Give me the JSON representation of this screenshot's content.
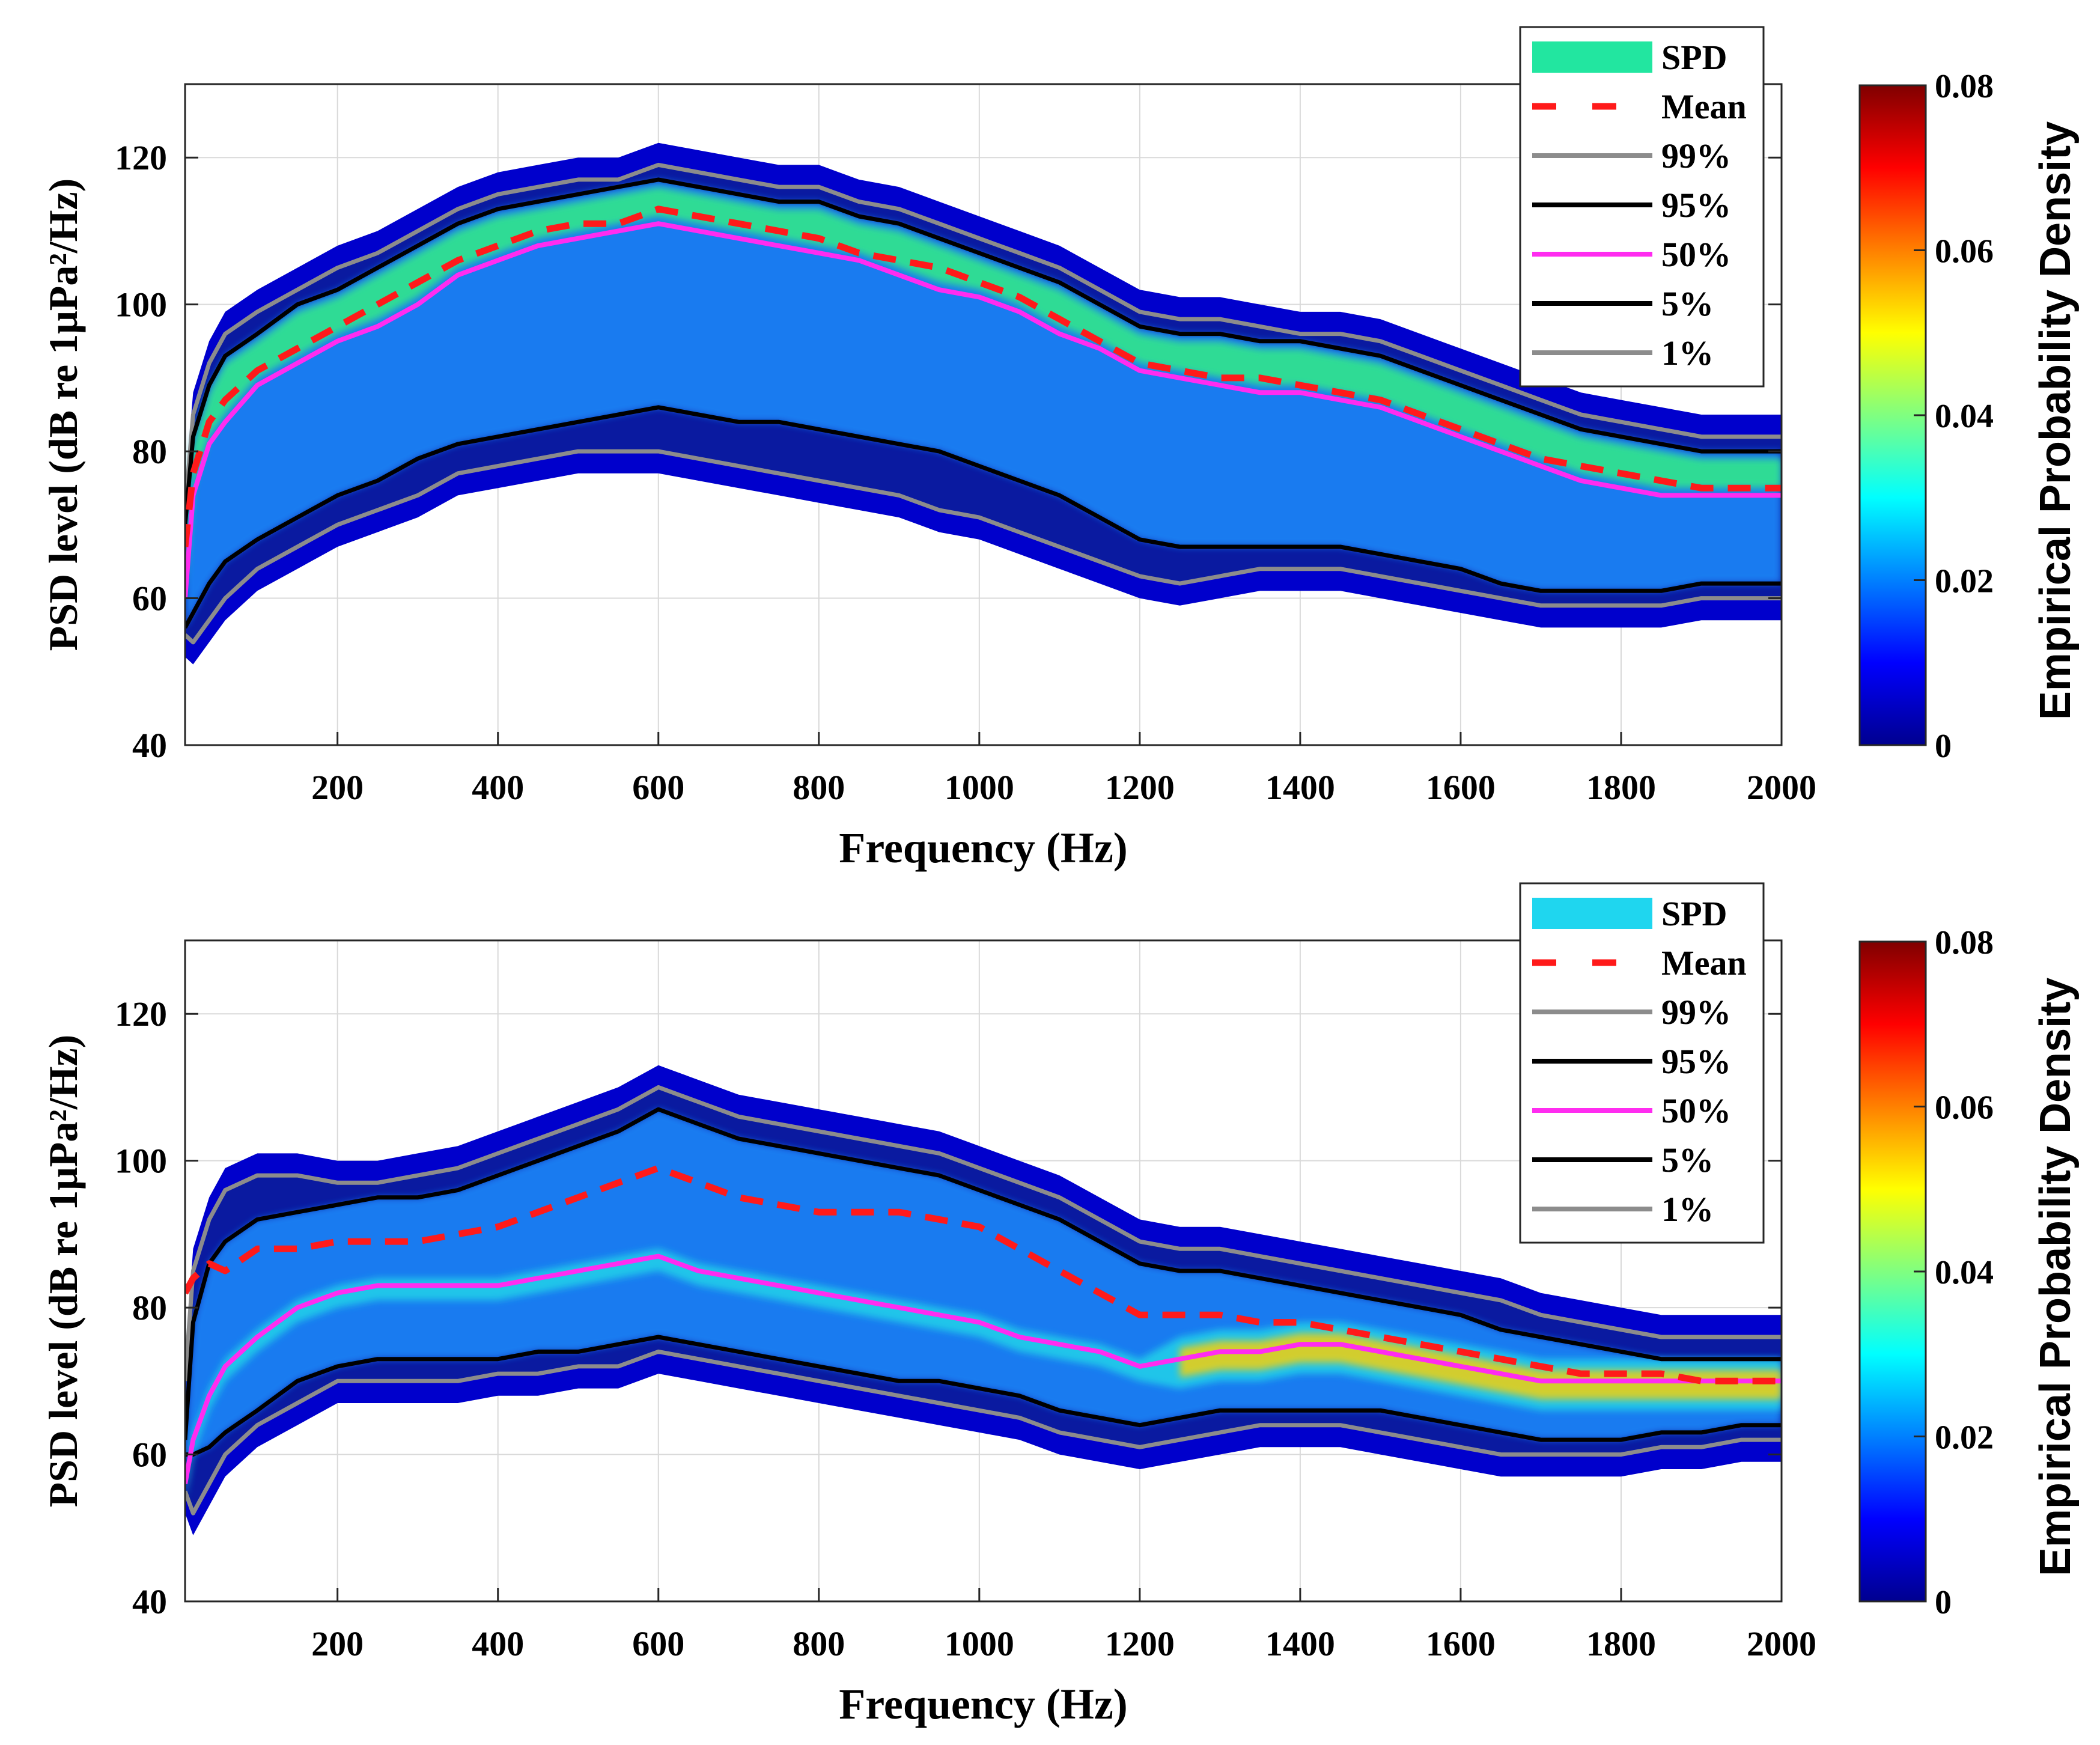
{
  "colors": {
    "spd_top": "#22e6a0",
    "spd_bottom": "#1fd6ef",
    "mean": "#ff1a1a",
    "p99": "#8c8c8c",
    "p95": "#000000",
    "p50": "#ff2cf0",
    "p5": "#000000",
    "p1": "#8c8c8c",
    "grid": "#d9d9d9",
    "density_low": "#0a1aa0",
    "density_mid": "#1a8dff",
    "density_halo": "#0000cc"
  },
  "colormap": [
    "#00008f",
    "#0000ff",
    "#0080ff",
    "#00ffff",
    "#80ff80",
    "#ffff00",
    "#ff8000",
    "#ff0000",
    "#800000"
  ],
  "chart_data": [
    {
      "type": "line",
      "name": "top-panel",
      "xlabel": "Frequency (Hz)",
      "ylabel": "PSD level (dB re 1μPa²/Hz)",
      "xlim": [
        10,
        2000
      ],
      "ylim": [
        40,
        130
      ],
      "xticks": [
        200,
        400,
        600,
        800,
        1000,
        1200,
        1400,
        1600,
        1800,
        2000
      ],
      "yticks": [
        40,
        60,
        80,
        100,
        120
      ],
      "grid": true,
      "legend": {
        "position": "top-right",
        "labels": [
          "SPD",
          "Mean",
          "99%",
          "95%",
          "50%",
          "5%",
          "1%"
        ]
      },
      "colorbar": {
        "label": "Empirical Probability Density",
        "range": [
          0,
          0.08
        ],
        "ticks": [
          "0",
          "0.02",
          "0.04",
          "0.06",
          "0.08"
        ]
      },
      "x": [
        10,
        20,
        40,
        60,
        100,
        150,
        200,
        250,
        300,
        350,
        400,
        450,
        500,
        550,
        600,
        650,
        700,
        750,
        800,
        850,
        900,
        950,
        1000,
        1050,
        1100,
        1150,
        1200,
        1250,
        1300,
        1350,
        1400,
        1450,
        1500,
        1550,
        1600,
        1650,
        1700,
        1750,
        1800,
        1850,
        1900,
        1950,
        2000
      ],
      "series": [
        {
          "name": "99%",
          "values": [
            72,
            85,
            92,
            96,
            99,
            102,
            105,
            107,
            110,
            113,
            115,
            116,
            117,
            117,
            119,
            118,
            117,
            116,
            116,
            114,
            113,
            111,
            109,
            107,
            105,
            102,
            99,
            98,
            98,
            97,
            96,
            96,
            95,
            93,
            91,
            89,
            87,
            85,
            84,
            83,
            82,
            82,
            82
          ]
        },
        {
          "name": "95%",
          "values": [
            70,
            82,
            89,
            93,
            96,
            100,
            102,
            105,
            108,
            111,
            113,
            114,
            115,
            116,
            117,
            116,
            115,
            114,
            114,
            112,
            111,
            109,
            107,
            105,
            103,
            100,
            97,
            96,
            96,
            95,
            95,
            94,
            93,
            91,
            89,
            87,
            85,
            83,
            82,
            81,
            80,
            80,
            80
          ]
        },
        {
          "name": "Mean",
          "values": [
            67,
            77,
            84,
            87,
            91,
            94,
            97,
            100,
            103,
            106,
            108,
            110,
            111,
            111,
            113,
            112,
            111,
            110,
            109,
            107,
            106,
            105,
            103,
            101,
            98,
            95,
            92,
            91,
            90,
            90,
            89,
            88,
            87,
            85,
            83,
            81,
            79,
            78,
            77,
            76,
            75,
            75,
            75
          ]
        },
        {
          "name": "50%",
          "values": [
            60,
            74,
            81,
            84,
            89,
            92,
            95,
            97,
            100,
            104,
            106,
            108,
            109,
            110,
            111,
            110,
            109,
            108,
            107,
            106,
            104,
            102,
            101,
            99,
            96,
            94,
            91,
            90,
            89,
            88,
            88,
            87,
            86,
            84,
            82,
            80,
            78,
            76,
            75,
            74,
            74,
            74,
            74
          ]
        },
        {
          "name": "5%",
          "values": [
            56,
            58,
            62,
            65,
            68,
            71,
            74,
            76,
            79,
            81,
            82,
            83,
            84,
            85,
            86,
            85,
            84,
            84,
            83,
            82,
            81,
            80,
            78,
            76,
            74,
            71,
            68,
            67,
            67,
            67,
            67,
            67,
            66,
            65,
            64,
            62,
            61,
            61,
            61,
            61,
            62,
            62,
            62
          ]
        },
        {
          "name": "1%",
          "values": [
            55,
            54,
            57,
            60,
            64,
            67,
            70,
            72,
            74,
            77,
            78,
            79,
            80,
            80,
            80,
            79,
            78,
            77,
            76,
            75,
            74,
            72,
            71,
            69,
            67,
            65,
            63,
            62,
            63,
            64,
            64,
            64,
            63,
            62,
            61,
            60,
            59,
            59,
            59,
            59,
            60,
            60,
            60
          ]
        }
      ]
    },
    {
      "type": "line",
      "name": "bottom-panel",
      "xlabel": "Frequency (Hz)",
      "ylabel": "PSD level (dB re 1μPa²/Hz)",
      "xlim": [
        10,
        2000
      ],
      "ylim": [
        40,
        130
      ],
      "xticks": [
        200,
        400,
        600,
        800,
        1000,
        1200,
        1400,
        1600,
        1800,
        2000
      ],
      "yticks": [
        40,
        60,
        80,
        100,
        120
      ],
      "grid": true,
      "legend": {
        "position": "top-right",
        "labels": [
          "SPD",
          "Mean",
          "99%",
          "95%",
          "50%",
          "5%",
          "1%"
        ]
      },
      "colorbar": {
        "label": "Empirical Probability Density",
        "range": [
          0,
          0.08
        ],
        "ticks": [
          "0",
          "0.02",
          "0.04",
          "0.06",
          "0.08"
        ]
      },
      "x": [
        10,
        20,
        40,
        60,
        100,
        150,
        200,
        250,
        300,
        350,
        400,
        450,
        500,
        550,
        600,
        650,
        700,
        750,
        800,
        850,
        900,
        950,
        1000,
        1050,
        1100,
        1150,
        1200,
        1250,
        1300,
        1350,
        1400,
        1450,
        1500,
        1550,
        1600,
        1650,
        1700,
        1750,
        1800,
        1850,
        1900,
        1950,
        2000
      ],
      "series": [
        {
          "name": "99%",
          "values": [
            70,
            85,
            92,
            96,
            98,
            98,
            97,
            97,
            98,
            99,
            101,
            103,
            105,
            107,
            110,
            108,
            106,
            105,
            104,
            103,
            102,
            101,
            99,
            97,
            95,
            92,
            89,
            88,
            88,
            87,
            86,
            85,
            84,
            83,
            82,
            81,
            79,
            78,
            77,
            76,
            76,
            76,
            76
          ]
        },
        {
          "name": "95%",
          "values": [
            62,
            78,
            86,
            89,
            92,
            93,
            94,
            95,
            95,
            96,
            98,
            100,
            102,
            104,
            107,
            105,
            103,
            102,
            101,
            100,
            99,
            98,
            96,
            94,
            92,
            89,
            86,
            85,
            85,
            84,
            83,
            82,
            81,
            80,
            79,
            77,
            76,
            75,
            74,
            73,
            73,
            73,
            73
          ]
        },
        {
          "name": "Mean",
          "values": [
            82,
            84,
            86,
            85,
            88,
            88,
            89,
            89,
            89,
            90,
            91,
            93,
            95,
            97,
            99,
            97,
            95,
            94,
            93,
            93,
            93,
            92,
            91,
            88,
            85,
            82,
            79,
            79,
            79,
            78,
            78,
            77,
            76,
            75,
            74,
            73,
            72,
            71,
            71,
            71,
            70,
            70,
            70
          ]
        },
        {
          "name": "50%",
          "values": [
            56,
            62,
            68,
            72,
            76,
            80,
            82,
            83,
            83,
            83,
            83,
            84,
            85,
            86,
            87,
            85,
            84,
            83,
            82,
            81,
            80,
            79,
            78,
            76,
            75,
            74,
            72,
            73,
            74,
            74,
            75,
            75,
            74,
            73,
            72,
            71,
            70,
            70,
            70,
            70,
            70,
            70,
            70
          ]
        },
        {
          "name": "5%",
          "values": [
            60,
            60,
            61,
            63,
            66,
            70,
            72,
            73,
            73,
            73,
            73,
            74,
            74,
            75,
            76,
            75,
            74,
            73,
            72,
            71,
            70,
            70,
            69,
            68,
            66,
            65,
            64,
            65,
            66,
            66,
            66,
            66,
            66,
            65,
            64,
            63,
            62,
            62,
            62,
            63,
            63,
            64,
            64
          ]
        },
        {
          "name": "1%",
          "values": [
            55,
            52,
            56,
            60,
            64,
            67,
            70,
            70,
            70,
            70,
            71,
            71,
            72,
            72,
            74,
            73,
            72,
            71,
            70,
            69,
            68,
            67,
            66,
            65,
            63,
            62,
            61,
            62,
            63,
            64,
            64,
            64,
            63,
            62,
            61,
            60,
            60,
            60,
            60,
            61,
            61,
            62,
            62
          ]
        }
      ]
    }
  ]
}
